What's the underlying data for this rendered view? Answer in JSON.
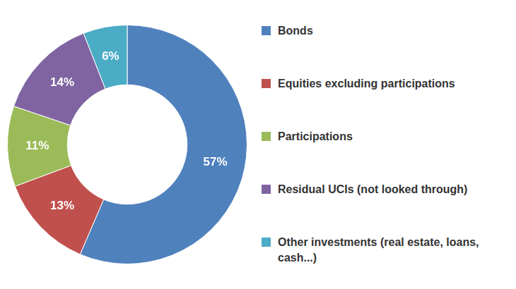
{
  "chart_data": {
    "type": "doughnut",
    "categories": [
      "Bonds",
      "Equities excluding participations",
      "Participations",
      "Residual UCIs (not looked through)",
      "Other investments (real estate, loans, cash...)"
    ],
    "values": [
      57,
      13,
      11,
      14,
      6
    ],
    "value_labels": [
      "57%",
      "13%",
      "11%",
      "14%",
      "6%"
    ],
    "colors": [
      "#4f81bd",
      "#c0504d",
      "#9bbb59",
      "#8064a2",
      "#4bacc6"
    ],
    "data_labels": true,
    "legend": "right"
  }
}
